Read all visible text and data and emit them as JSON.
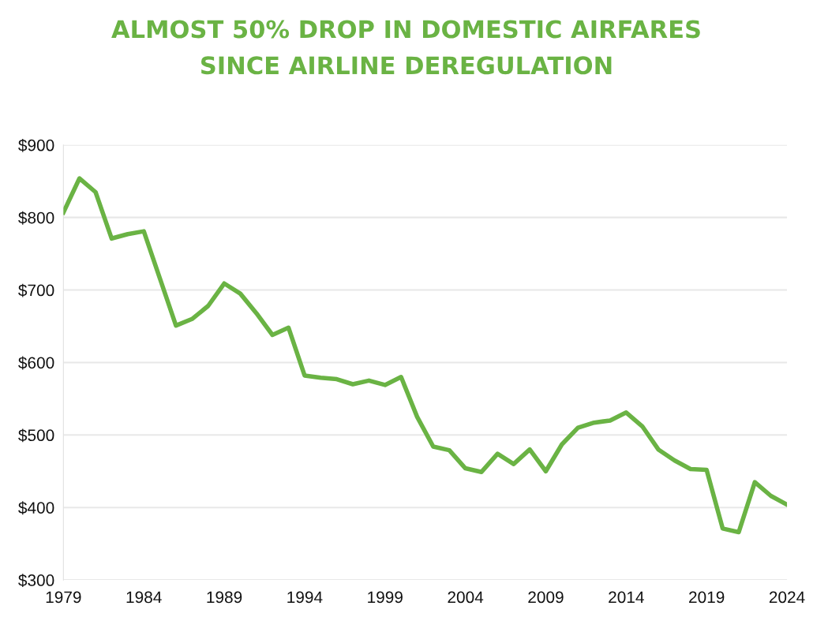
{
  "chart_data": {
    "type": "line",
    "title": "ALMOST 50% DROP IN DOMESTIC AIRFARES\nSINCE AIRLINE DEREGULATION",
    "x": [
      1979,
      1980,
      1981,
      1982,
      1983,
      1984,
      1985,
      1986,
      1987,
      1988,
      1989,
      1990,
      1991,
      1992,
      1993,
      1994,
      1995,
      1996,
      1997,
      1998,
      1999,
      2000,
      2001,
      2002,
      2003,
      2004,
      2005,
      2006,
      2007,
      2008,
      2009,
      2010,
      2011,
      2012,
      2013,
      2014,
      2015,
      2016,
      2017,
      2018,
      2019,
      2020,
      2021,
      2022,
      2023,
      2024
    ],
    "series": [
      {
        "color": "#6ab344",
        "values": [
          807,
          854,
          835,
          771,
          777,
          781,
          716,
          651,
          660,
          678,
          709,
          695,
          668,
          638,
          648,
          582,
          579,
          577,
          570,
          575,
          569,
          580,
          525,
          484,
          479,
          454,
          449,
          474,
          460,
          480,
          450,
          487,
          510,
          517,
          520,
          531,
          512,
          480,
          465,
          453,
          452,
          371,
          366,
          435,
          416,
          404
        ]
      }
    ],
    "xlim": [
      1979,
      2024
    ],
    "xticks": [
      1979,
      1984,
      1989,
      1994,
      1999,
      2004,
      2009,
      2014,
      2019,
      2024
    ],
    "ylim": [
      300,
      900
    ],
    "yticks": [
      {
        "value": 300,
        "label": "$300"
      },
      {
        "value": 400,
        "label": "$400"
      },
      {
        "value": 500,
        "label": "$500"
      },
      {
        "value": 600,
        "label": "$600"
      },
      {
        "value": 700,
        "label": "$700"
      },
      {
        "value": 800,
        "label": "$800"
      },
      {
        "value": 900,
        "label": "$900"
      }
    ],
    "grid": "y",
    "legend": false,
    "marker": "none",
    "line_style": "solid"
  }
}
